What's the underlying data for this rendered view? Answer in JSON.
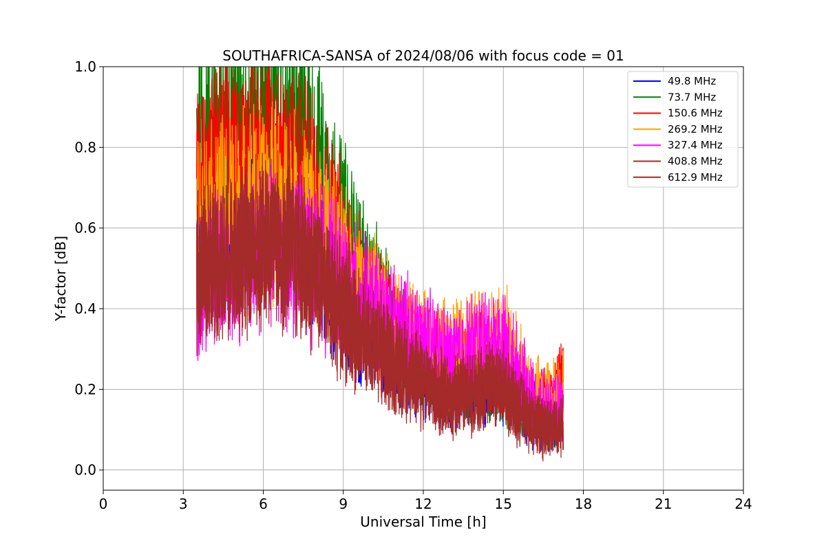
{
  "chart_data": {
    "type": "line",
    "title": "SOUTHAFRICA-SANSA of 2024/08/06 with focus code = 01",
    "xlabel": "Universal Time [h]",
    "ylabel": "Y-factor [dB]",
    "xlim": [
      0,
      24
    ],
    "ylim": [
      -0.05,
      1.0
    ],
    "xticks": [
      0,
      3,
      6,
      9,
      12,
      15,
      18,
      21,
      24
    ],
    "yticks": [
      0.0,
      0.2,
      0.4,
      0.6,
      0.8,
      1.0
    ],
    "xtick_labels": [
      "0",
      "3",
      "6",
      "9",
      "12",
      "15",
      "18",
      "21",
      "24"
    ],
    "ytick_labels": [
      "0.0",
      "0.2",
      "0.4",
      "0.6",
      "0.8",
      "1.0"
    ],
    "grid": true,
    "legend_position": "top-right",
    "x": [
      3.5,
      4,
      5,
      6,
      7,
      8,
      9,
      10,
      11,
      12,
      13,
      14,
      15,
      16,
      16.5,
      17.25
    ],
    "series": [
      {
        "name": "  49.8 MHz",
        "color": "#0000ff",
        "values": [
          0.55,
          0.6,
          0.62,
          0.65,
          0.63,
          0.55,
          0.42,
          0.33,
          0.28,
          0.24,
          0.2,
          0.22,
          0.22,
          0.14,
          0.12,
          0.14
        ]
      },
      {
        "name": "  73.7 MHz",
        "color": "#008000",
        "values": [
          0.82,
          0.84,
          0.86,
          0.89,
          0.87,
          0.77,
          0.6,
          0.45,
          0.34,
          0.27,
          0.22,
          0.25,
          0.24,
          0.15,
          0.14,
          0.16
        ]
      },
      {
        "name": "150.6 MHz",
        "color": "#ff0000",
        "values": [
          0.7,
          0.73,
          0.75,
          0.78,
          0.76,
          0.68,
          0.55,
          0.42,
          0.33,
          0.28,
          0.23,
          0.26,
          0.26,
          0.17,
          0.15,
          0.22
        ]
      },
      {
        "name": "269.2 MHz",
        "color": "#ffa500",
        "values": [
          0.6,
          0.63,
          0.65,
          0.67,
          0.65,
          0.6,
          0.5,
          0.42,
          0.36,
          0.33,
          0.28,
          0.32,
          0.32,
          0.2,
          0.17,
          0.2
        ]
      },
      {
        "name": "327.4 MHz",
        "color": "#ff00ff",
        "values": [
          0.45,
          0.5,
          0.52,
          0.55,
          0.55,
          0.52,
          0.45,
          0.4,
          0.35,
          0.32,
          0.27,
          0.31,
          0.31,
          0.18,
          0.15,
          0.15
        ]
      },
      {
        "name": "408.8 MHz",
        "color": "#a52a2a",
        "values": [
          0.5,
          0.53,
          0.55,
          0.58,
          0.56,
          0.5,
          0.4,
          0.32,
          0.26,
          0.22,
          0.18,
          0.21,
          0.21,
          0.13,
          0.11,
          0.12
        ]
      },
      {
        "name": "612.9 MHz",
        "color": "#a52a2a",
        "values": [
          0.48,
          0.51,
          0.53,
          0.56,
          0.54,
          0.48,
          0.38,
          0.3,
          0.25,
          0.21,
          0.17,
          0.2,
          0.2,
          0.12,
          0.1,
          0.11
        ]
      }
    ]
  }
}
